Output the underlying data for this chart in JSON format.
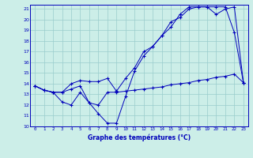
{
  "xlabel": "Graphe des températures (°C)",
  "hours": [
    0,
    1,
    2,
    3,
    4,
    5,
    6,
    7,
    8,
    9,
    10,
    11,
    12,
    13,
    14,
    15,
    16,
    17,
    18,
    19,
    20,
    21,
    22,
    23
  ],
  "series_min": [
    13.8,
    13.4,
    13.2,
    13.2,
    13.5,
    13.8,
    12.2,
    12.0,
    13.2,
    13.2,
    13.3,
    13.4,
    13.5,
    13.6,
    13.7,
    13.9,
    14.0,
    14.1,
    14.3,
    14.4,
    14.6,
    14.7,
    14.9,
    14.1
  ],
  "series_mean": [
    13.8,
    13.4,
    13.2,
    12.3,
    12.0,
    13.2,
    12.2,
    11.2,
    10.3,
    10.3,
    12.8,
    15.2,
    16.6,
    17.5,
    18.5,
    19.8,
    20.2,
    21.0,
    21.2,
    21.2,
    21.2,
    21.2,
    18.8,
    14.1
  ],
  "series_max": [
    13.8,
    13.4,
    13.2,
    13.2,
    14.0,
    14.3,
    14.2,
    14.2,
    14.5,
    13.3,
    14.5,
    15.5,
    17.0,
    17.5,
    18.5,
    19.3,
    20.5,
    21.2,
    21.2,
    21.2,
    20.5,
    21.0,
    21.2,
    14.1
  ],
  "ylim_min": 10,
  "ylim_max": 21.4,
  "yticks": [
    10,
    11,
    12,
    13,
    14,
    15,
    16,
    17,
    18,
    19,
    20,
    21
  ],
  "line_color": "#0000bb",
  "bg_color": "#cceee8",
  "grid_color": "#99cccc",
  "figsize": [
    3.2,
    2.0
  ],
  "dpi": 100
}
